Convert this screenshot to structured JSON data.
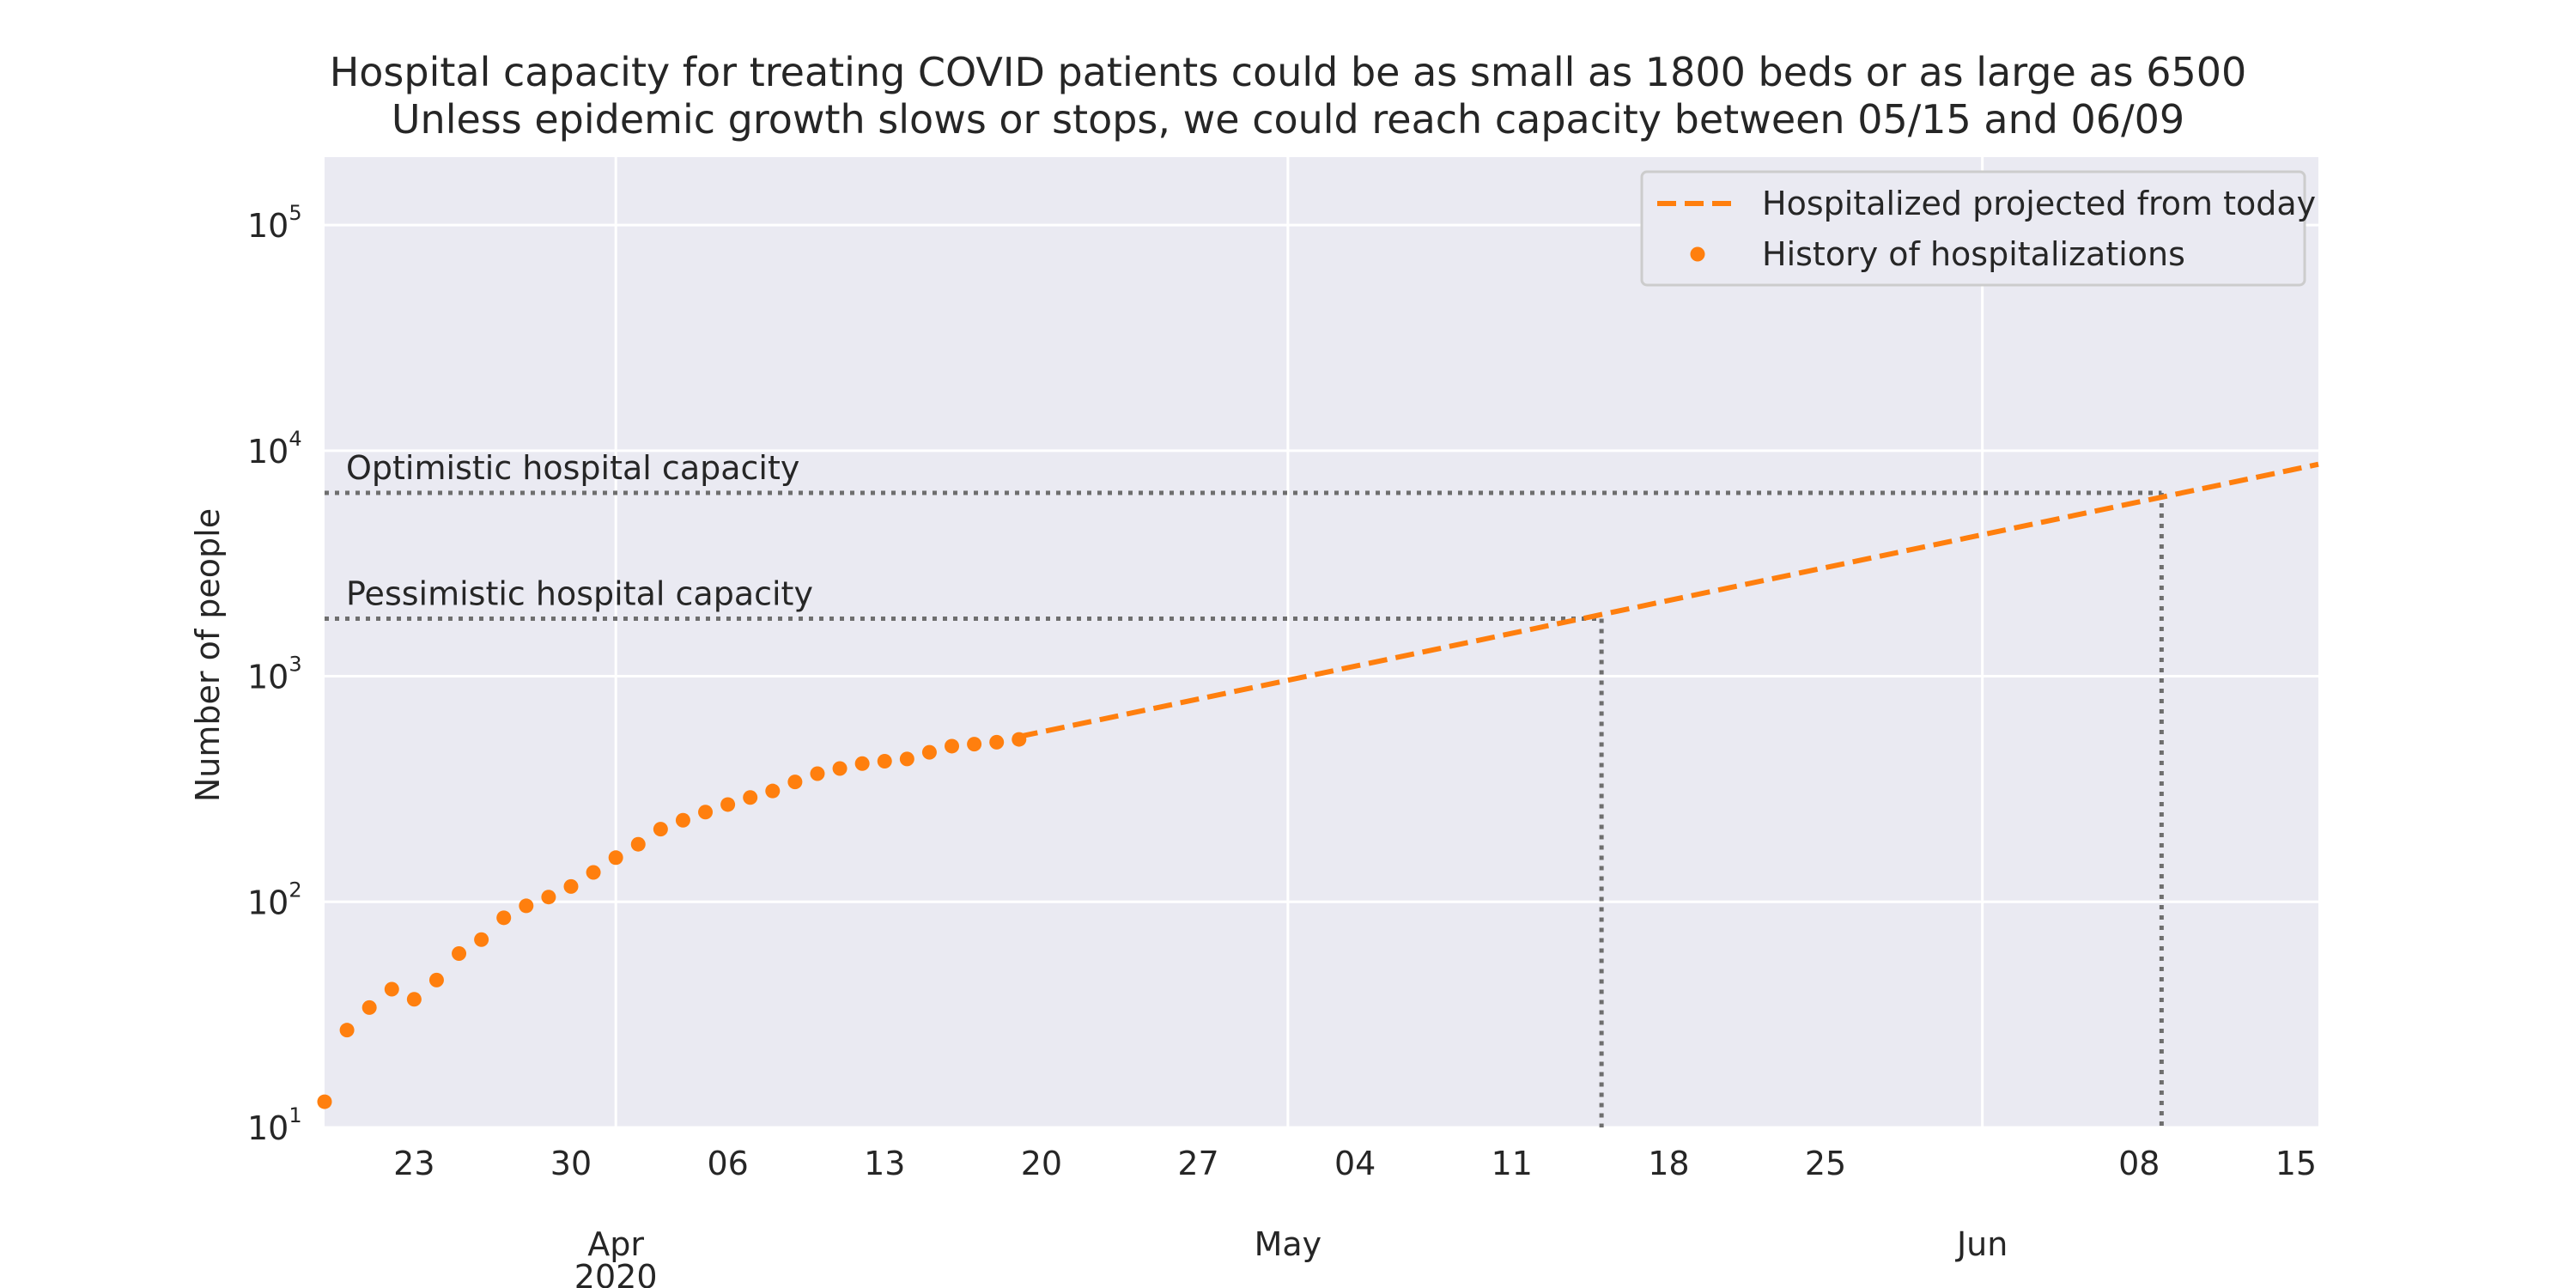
{
  "chart_data": {
    "type": "line",
    "title": "Hospital capacity for treating COVID patients could be as small as 1800 beds or as large as 6500",
    "subtitle": "Unless epidemic growth slows or stops, we could reach capacity between 05/15 and 06/09",
    "xlabel": "",
    "ylabel": "Number of people",
    "yscale": "log",
    "ylim": [
      10,
      200000
    ],
    "xlim": [
      "2020-03-19",
      "2020-06-16"
    ],
    "grid": true,
    "legend_position": "top-right",
    "x_ticks": [
      {
        "date": "2020-03-23",
        "label": "23"
      },
      {
        "date": "2020-03-30",
        "label": "30"
      },
      {
        "date": "2020-04-06",
        "label": "06"
      },
      {
        "date": "2020-04-13",
        "label": "13"
      },
      {
        "date": "2020-04-20",
        "label": "20"
      },
      {
        "date": "2020-04-27",
        "label": "27"
      },
      {
        "date": "2020-05-04",
        "label": "04"
      },
      {
        "date": "2020-05-11",
        "label": "11"
      },
      {
        "date": "2020-05-18",
        "label": "18"
      },
      {
        "date": "2020-05-25",
        "label": "25"
      },
      {
        "date": "2020-06-08",
        "label": "08"
      },
      {
        "date": "2020-06-15",
        "label": "15"
      }
    ],
    "x_month_ticks": [
      {
        "date": "2020-04-01",
        "label": "Apr",
        "year": "2020"
      },
      {
        "date": "2020-05-01",
        "label": "May",
        "year": ""
      },
      {
        "date": "2020-06-01",
        "label": "Jun",
        "year": ""
      }
    ],
    "y_ticks": [
      {
        "value": 10,
        "base": "10",
        "exponent": "1"
      },
      {
        "value": 100,
        "base": "10",
        "exponent": "2"
      },
      {
        "value": 1000,
        "base": "10",
        "exponent": "3"
      },
      {
        "value": 10000,
        "base": "10",
        "exponent": "4"
      },
      {
        "value": 100000,
        "base": "10",
        "exponent": "5"
      }
    ],
    "series": [
      {
        "name": "Hospitalized projected from today",
        "style": "dashed",
        "color": "#ff7f0e",
        "points": [
          {
            "x": "2020-04-19",
            "y": 540
          },
          {
            "x": "2020-06-16",
            "y": 8700
          }
        ]
      },
      {
        "name": "History of hospitalizations",
        "style": "scatter",
        "color": "#ff7f0e",
        "points": [
          {
            "x": "2020-03-19",
            "y": 13
          },
          {
            "x": "2020-03-20",
            "y": 27
          },
          {
            "x": "2020-03-21",
            "y": 34
          },
          {
            "x": "2020-03-22",
            "y": 41
          },
          {
            "x": "2020-03-23",
            "y": 37
          },
          {
            "x": "2020-03-24",
            "y": 45
          },
          {
            "x": "2020-03-25",
            "y": 59
          },
          {
            "x": "2020-03-26",
            "y": 68
          },
          {
            "x": "2020-03-27",
            "y": 85
          },
          {
            "x": "2020-03-28",
            "y": 96
          },
          {
            "x": "2020-03-29",
            "y": 105
          },
          {
            "x": "2020-03-30",
            "y": 117
          },
          {
            "x": "2020-03-31",
            "y": 135
          },
          {
            "x": "2020-04-01",
            "y": 157
          },
          {
            "x": "2020-04-02",
            "y": 180
          },
          {
            "x": "2020-04-03",
            "y": 210
          },
          {
            "x": "2020-04-04",
            "y": 230
          },
          {
            "x": "2020-04-05",
            "y": 250
          },
          {
            "x": "2020-04-06",
            "y": 270
          },
          {
            "x": "2020-04-07",
            "y": 290
          },
          {
            "x": "2020-04-08",
            "y": 310
          },
          {
            "x": "2020-04-09",
            "y": 340
          },
          {
            "x": "2020-04-10",
            "y": 370
          },
          {
            "x": "2020-04-11",
            "y": 390
          },
          {
            "x": "2020-04-12",
            "y": 410
          },
          {
            "x": "2020-04-13",
            "y": 420
          },
          {
            "x": "2020-04-14",
            "y": 430
          },
          {
            "x": "2020-04-15",
            "y": 460
          },
          {
            "x": "2020-04-16",
            "y": 490
          },
          {
            "x": "2020-04-17",
            "y": 500
          },
          {
            "x": "2020-04-18",
            "y": 510
          },
          {
            "x": "2020-04-19",
            "y": 525
          }
        ]
      }
    ],
    "reference_lines": [
      {
        "label": "Optimistic hospital capacity",
        "y": 6500,
        "reached_date": "2020-06-09",
        "color": "#6e6e6e",
        "style": "dotted"
      },
      {
        "label": "Pessimistic hospital capacity",
        "y": 1800,
        "reached_date": "2020-05-15",
        "color": "#6e6e6e",
        "style": "dotted"
      }
    ],
    "colors": {
      "plot_background": "#eaeaf2",
      "grid": "#ffffff",
      "text": "#262626",
      "legend_border": "#cccccc",
      "legend_background": "#eaeaf2"
    }
  }
}
